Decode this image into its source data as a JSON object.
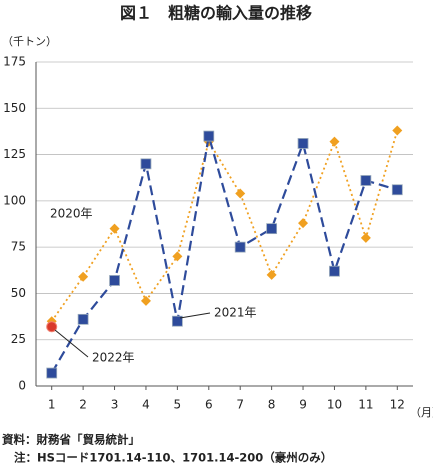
{
  "chart_data": {
    "type": "line",
    "title": "図１　粗糖の輸入量の推移",
    "y_unit": "（千トン）",
    "x_unit": "（月）",
    "x": [
      1,
      2,
      3,
      4,
      5,
      6,
      7,
      8,
      9,
      10,
      11,
      12
    ],
    "xlim": [
      0.5,
      12.5
    ],
    "xticks": [
      1,
      2,
      3,
      4,
      5,
      6,
      7,
      8,
      9,
      10,
      11,
      12
    ],
    "ylim": [
      0,
      175
    ],
    "yticks": [
      0,
      25,
      50,
      75,
      100,
      125,
      150,
      175
    ],
    "grid": true,
    "series": [
      {
        "name": "2020年",
        "color": "#f0a020",
        "style": "dotted",
        "marker": "diamond",
        "values": [
          35,
          59,
          85,
          46,
          70,
          132,
          104,
          60,
          88,
          132,
          80,
          138
        ]
      },
      {
        "name": "2021年",
        "color": "#2e4b9b",
        "style": "dashed",
        "marker": "square",
        "values": [
          7,
          36,
          57,
          120,
          35,
          135,
          75,
          85,
          131,
          62,
          111,
          106
        ]
      },
      {
        "name": "2022年",
        "color": "#d9392b",
        "style": "solid",
        "marker": "circle",
        "values": [
          32,
          null,
          null,
          null,
          null,
          null,
          null,
          null,
          null,
          null,
          null,
          null
        ]
      }
    ],
    "notes": [
      "資料：財務省「貿易統計」",
      "注：HSコード1701.14-110、1701.14-200（豪州のみ）"
    ]
  }
}
